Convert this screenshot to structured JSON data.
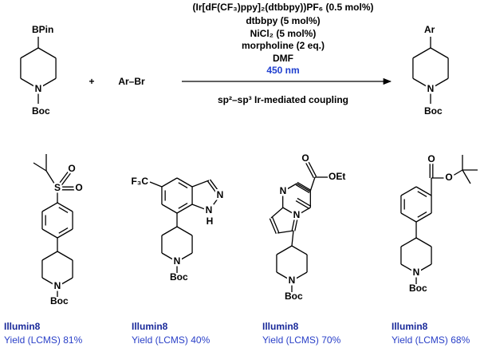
{
  "reaction": {
    "reagents": [
      "(Ir[dF(CF₃)ppy]₂(dtbbpy))PF₆ (0.5 mol%)",
      "dtbbpy (5 mol%)",
      "NiCl₂ (5 mol%)",
      "morpholine (2 eq.)",
      "DMF"
    ],
    "wavelength": "450 nm",
    "condition": "sp²–sp³ Ir-mediated coupling",
    "plus": "+",
    "aryl_halide": "Ar–Br"
  },
  "starting_material": {
    "substituent": "BPin",
    "ring_atom": "N",
    "protecting_group": "Boc"
  },
  "product": {
    "substituent": "Ar",
    "ring_atom": "N",
    "protecting_group": "Boc"
  },
  "examples": [
    {
      "atoms": [
        "O",
        "S",
        "O",
        "N",
        "Boc"
      ],
      "label": "Illumin8",
      "yield": "Yield (LCMS) 81%"
    },
    {
      "atoms": [
        "F₃C",
        "N",
        "N",
        "H",
        "N",
        "Boc"
      ],
      "label": "Illumin8",
      "yield": "Yield (LCMS) 40%"
    },
    {
      "atoms": [
        "O",
        "OEt",
        "N",
        "N",
        "N",
        "Boc"
      ],
      "label": "Illumin8",
      "yield": "Yield (LCMS) 70%"
    },
    {
      "atoms": [
        "O",
        "O",
        "N",
        "Boc"
      ],
      "label": "Illumin8",
      "yield": "Yield (LCMS) 68%"
    }
  ]
}
